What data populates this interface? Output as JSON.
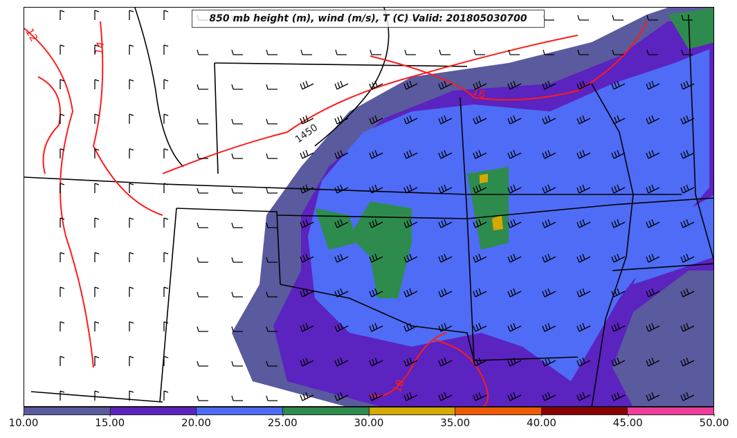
{
  "title": "850 mb height (m), wind (m/s), T (C) Valid: 201805030700",
  "colorbar": {
    "ticks": [
      "10.00",
      "15.00",
      "20.00",
      "25.00",
      "30.00",
      "35.00",
      "40.00",
      "45.00",
      "50.00"
    ],
    "colors": [
      "#5a5a9e",
      "#5b23bf",
      "#4e6cf5",
      "#2e8b4e",
      "#d4aa00",
      "#f05a00",
      "#8b0000",
      "#f03c9a"
    ]
  },
  "contour_labels": {
    "height": [
      "1450"
    ],
    "temperature": [
      "12",
      "14",
      "16",
      "18"
    ]
  },
  "colors": {
    "temperature_contour": "#ff1a1a",
    "state_border": "#000000",
    "wind_barb": "#000000"
  }
}
